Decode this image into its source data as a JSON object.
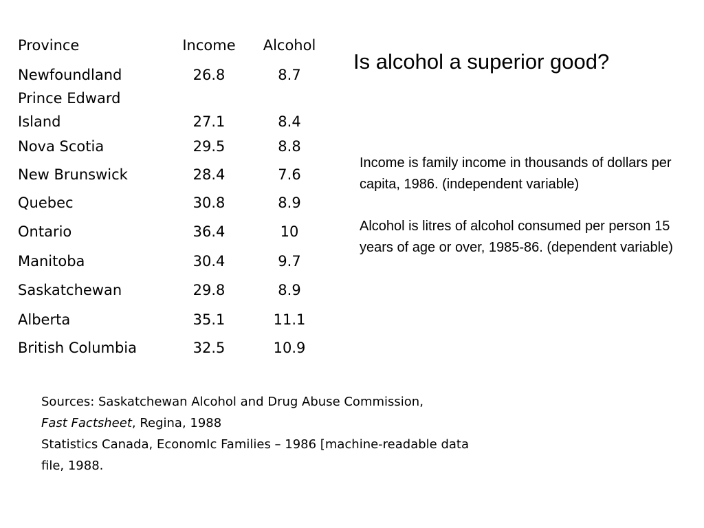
{
  "table": {
    "headers": {
      "province": "Province",
      "income": "Income",
      "alcohol": "Alcohol"
    },
    "rows": [
      {
        "province": "Newfoundland",
        "income": "26.8",
        "alcohol": "8.7"
      },
      {
        "province_line1": "Prince Edward",
        "province": "Island",
        "income": "27.1",
        "alcohol": "8.4"
      },
      {
        "province": "Nova Scotia",
        "income": "29.5",
        "alcohol": "8.8"
      },
      {
        "province": "New Brunswick",
        "income": "28.4",
        "alcohol": "7.6"
      },
      {
        "province": "Quebec",
        "income": "30.8",
        "alcohol": "8.9"
      },
      {
        "province": "Ontario",
        "income": "36.4",
        "alcohol": "10"
      },
      {
        "province": "Manitoba",
        "income": "30.4",
        "alcohol": "9.7"
      },
      {
        "province": "Saskatchewan",
        "income": "29.8",
        "alcohol": "8.9"
      },
      {
        "province": "Alberta",
        "income": "35.1",
        "alcohol": "11.1"
      },
      {
        "province": "British Columbia",
        "income": "32.5",
        "alcohol": "10.9"
      }
    ]
  },
  "title": "Is alcohol a superior good?",
  "notes": {
    "income": "Income is family income in thousands of dollars per capita, 1986.  (independent variable)",
    "alcohol": "Alcohol is litres of alcohol consumed per person 15 years of age or over, 1985-86. (dependent variable)"
  },
  "sources": {
    "line1": "Sources:   Saskatchewan Alcohol and Drug Abuse Commission,",
    "line2_italic": "Fast Factsheet",
    "line2_rest": ", Regina, 1988",
    "line3": "Statistics Canada, EconomIc Families – 1986 [machine-readable data",
    "line4": "file, 1988."
  }
}
